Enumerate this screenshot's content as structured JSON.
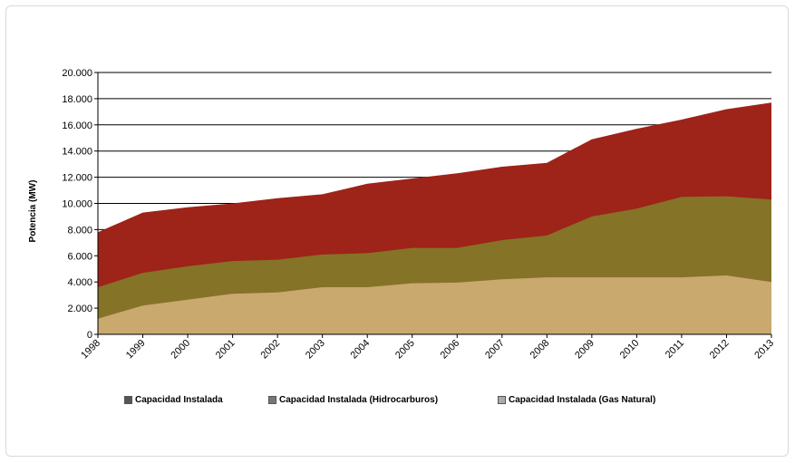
{
  "chart_data": {
    "type": "area",
    "stacked": true,
    "title": "",
    "xlabel": "",
    "ylabel": "Potencia (MW)",
    "ylim": [
      0,
      20000
    ],
    "yticks": [
      0,
      2000,
      4000,
      6000,
      8000,
      10000,
      12000,
      14000,
      16000,
      18000,
      20000
    ],
    "ytick_labels": [
      "0",
      "2.000",
      "4.000",
      "6.000",
      "8.000",
      "10.000",
      "12.000",
      "14.000",
      "16.000",
      "18.000",
      "20.000"
    ],
    "x": [
      "1998",
      "1999",
      "2000",
      "2001",
      "2002",
      "2003",
      "2004",
      "2005",
      "2006",
      "2007",
      "2008",
      "2009",
      "2010",
      "2011",
      "2012",
      "2013"
    ],
    "series": [
      {
        "name": "Capacidad Instalada (Gas Natural)",
        "color": "#c9a96e",
        "values": [
          1200,
          2200,
          2650,
          3100,
          3200,
          3600,
          3600,
          3900,
          3950,
          4200,
          4350,
          4350,
          4350,
          4350,
          4500,
          4000
        ]
      },
      {
        "name": "Capacidad Instalada (Hidrocarburos)",
        "color": "#857327",
        "values": [
          3600,
          4700,
          5200,
          5600,
          5700,
          6100,
          6200,
          6600,
          6600,
          7200,
          7550,
          9000,
          9600,
          10500,
          10550,
          10300
        ]
      },
      {
        "name": "Capacidad Instalada",
        "color": "#9e2318",
        "values": [
          7800,
          9300,
          9700,
          10000,
          10400,
          10700,
          11500,
          11900,
          12300,
          12800,
          13100,
          14900,
          15700,
          16400,
          17200,
          17700
        ]
      }
    ],
    "grid": true,
    "legend_position": "bottom"
  }
}
